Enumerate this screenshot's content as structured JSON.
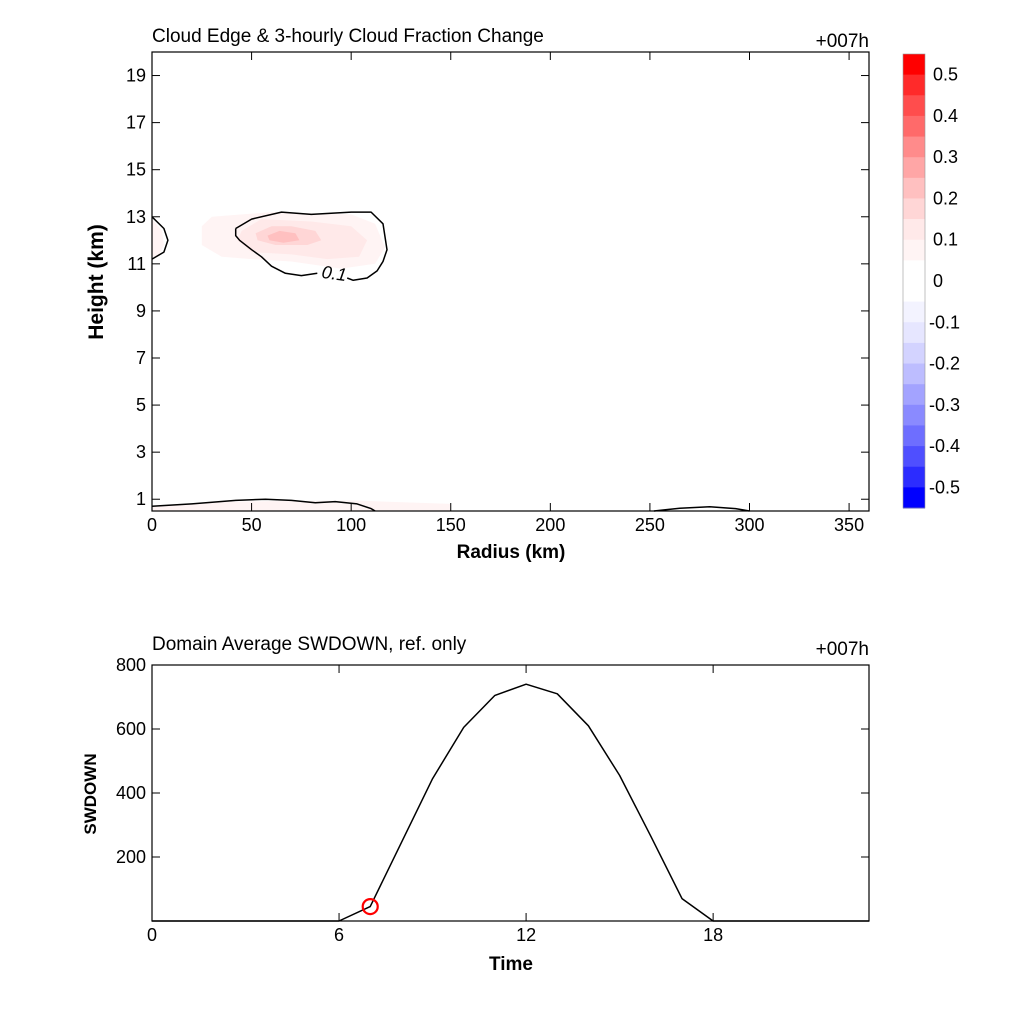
{
  "chart_data": [
    {
      "type": "heatmap",
      "title": "Cloud Edge & 3-hourly Cloud Fraction Change",
      "time_label": "+007h",
      "xlabel": "Radius (km)",
      "ylabel": "Height (km)",
      "xlim": [
        0,
        360
      ],
      "ylim": [
        0.5,
        20
      ],
      "xticks": [
        0,
        50,
        100,
        150,
        200,
        250,
        300,
        350
      ],
      "yticks": [
        1,
        3,
        5,
        7,
        9,
        11,
        13,
        15,
        17,
        19
      ],
      "colorbar": {
        "ticks": [
          "0.5",
          "0.4",
          "0.3",
          "0.2",
          "0.1",
          "0",
          "-0.1",
          "-0.2",
          "-0.3",
          "-0.4",
          "-0.5"
        ],
        "colors": [
          "#ff0000",
          "#ff2a2a",
          "#ff4d4d",
          "#ff6a6a",
          "#ff8b8b",
          "#ffa6a6",
          "#ffc0c0",
          "#ffd6d6",
          "#ffe9e9",
          "#fff4f4",
          "#ffffff",
          "#ffffff",
          "#f3f3ff",
          "#e6e6ff",
          "#d3d3ff",
          "#bdbdff",
          "#a3a3ff",
          "#8a8aff",
          "#6e6eff",
          "#4f4fff",
          "#2c2cff",
          "#0000ff"
        ]
      },
      "background_value": 0.01,
      "regions": [
        {
          "level": 0.1,
          "outline": [
            [
              0,
              12.9
            ],
            [
              5,
              12.4
            ],
            [
              6,
              11.8
            ],
            [
              3,
              11.3
            ],
            [
              0,
              11.3
            ]
          ]
        },
        {
          "level": 0.08,
          "outline": [
            [
              25,
              12.6
            ],
            [
              30,
              13.0
            ],
            [
              60,
              13.2
            ],
            [
              100,
              13.1
            ],
            [
              112,
              12.7
            ],
            [
              117,
              11.7
            ],
            [
              112,
              11.0
            ],
            [
              95,
              10.8
            ],
            [
              70,
              11.1
            ],
            [
              50,
              11.2
            ],
            [
              35,
              11.3
            ],
            [
              25,
              11.8
            ]
          ]
        },
        {
          "level": 0.13,
          "outline": [
            [
              45,
              12.4
            ],
            [
              55,
              12.9
            ],
            [
              80,
              12.8
            ],
            [
              100,
              12.6
            ],
            [
              108,
              12.0
            ],
            [
              104,
              11.3
            ],
            [
              88,
              11.2
            ],
            [
              70,
              11.4
            ],
            [
              50,
              11.5
            ],
            [
              43,
              12.0
            ]
          ]
        },
        {
          "level": 0.18,
          "outline": [
            [
              52,
              12.3
            ],
            [
              60,
              12.6
            ],
            [
              70,
              12.6
            ],
            [
              82,
              12.4
            ],
            [
              85,
              12.0
            ],
            [
              78,
              11.8
            ],
            [
              62,
              11.8
            ],
            [
              53,
              12.0
            ]
          ]
        },
        {
          "level": 0.24,
          "outline": [
            [
              58,
              12.2
            ],
            [
              64,
              12.4
            ],
            [
              72,
              12.3
            ],
            [
              74,
              12.0
            ],
            [
              66,
              11.9
            ],
            [
              59,
              12.0
            ]
          ]
        },
        {
          "level": 0.06,
          "outline": [
            [
              0,
              0.5
            ],
            [
              0,
              0.7
            ],
            [
              40,
              0.9
            ],
            [
              100,
              0.95
            ],
            [
              150,
              0.8
            ],
            [
              150,
              0.5
            ]
          ]
        }
      ],
      "contours": [
        {
          "label": "0.1",
          "label_at": [
            103,
            10.4
          ],
          "points": [
            [
              0,
              13.0
            ],
            [
              6,
              12.5
            ],
            [
              8,
              12.0
            ],
            [
              6,
              11.5
            ],
            [
              0,
              11.2
            ]
          ]
        },
        {
          "points": [
            [
              42,
              12.5
            ],
            [
              50,
              12.9
            ],
            [
              65,
              13.2
            ],
            [
              80,
              13.1
            ],
            [
              100,
              13.2
            ],
            [
              110,
              13.2
            ],
            [
              116,
              12.7
            ],
            [
              118,
              11.6
            ],
            [
              116,
              11.1
            ],
            [
              113,
              10.7
            ],
            [
              108,
              10.4
            ],
            [
              101,
              10.3
            ],
            [
              98,
              10.4
            ]
          ]
        },
        {
          "points": [
            [
              83,
              10.6
            ],
            [
              75,
              10.5
            ],
            [
              67,
              10.6
            ],
            [
              60,
              10.9
            ],
            [
              55,
              11.3
            ],
            [
              50,
              11.6
            ],
            [
              44,
              12.0
            ],
            [
              42,
              12.2
            ],
            [
              42,
              12.5
            ]
          ]
        },
        {
          "points": [
            [
              0,
              0.7
            ],
            [
              20,
              0.8
            ],
            [
              42,
              0.95
            ],
            [
              57,
              1.0
            ],
            [
              70,
              0.95
            ],
            [
              82,
              0.85
            ],
            [
              92,
              0.9
            ],
            [
              103,
              0.8
            ],
            [
              110,
              0.6
            ],
            [
              112,
              0.5
            ]
          ]
        },
        {
          "points": [
            [
              252,
              0.5
            ],
            [
              265,
              0.62
            ],
            [
              280,
              0.68
            ],
            [
              293,
              0.6
            ],
            [
              300,
              0.5
            ]
          ]
        }
      ]
    },
    {
      "type": "line",
      "title": "Domain Average SWDOWN, ref. only",
      "time_label": "+007h",
      "xlabel": "Time",
      "ylabel": "SWDOWN",
      "xlim": [
        0,
        23
      ],
      "ylim": [
        0,
        800
      ],
      "xticks": [
        0,
        6,
        12,
        18
      ],
      "yticks": [
        200,
        400,
        600,
        800
      ],
      "series": [
        {
          "x": [
            0,
            1,
            2,
            3,
            4,
            5,
            6,
            7,
            8,
            9,
            10,
            11,
            12,
            13,
            14,
            15,
            16,
            17,
            18,
            19,
            20,
            21,
            22,
            23
          ],
          "values": [
            0,
            0,
            0,
            0,
            0,
            0,
            0,
            45,
            245,
            445,
            605,
            705,
            740,
            710,
            610,
            455,
            265,
            70,
            0,
            0,
            0,
            0,
            0,
            0
          ]
        }
      ],
      "marker": {
        "x": 7,
        "y": 45,
        "color": "#ff0000"
      }
    }
  ]
}
